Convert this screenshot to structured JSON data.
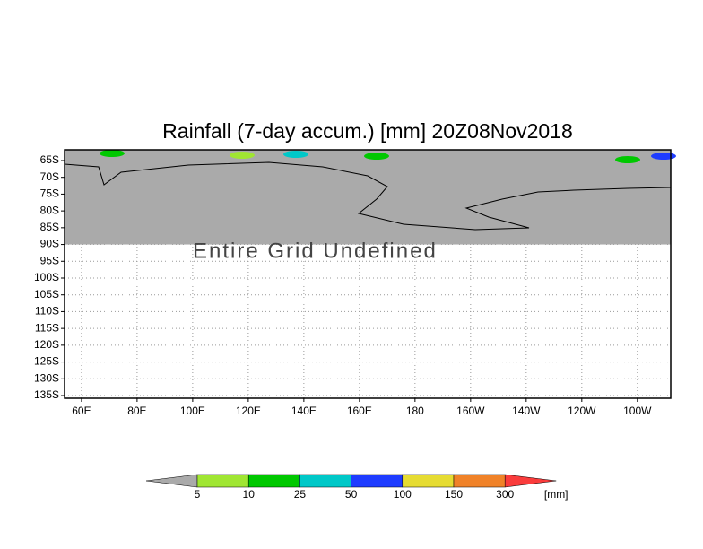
{
  "title": "Rainfall (7-day accum.) [mm] 20Z08Nov2018",
  "message": "Entire Grid Undefined",
  "map": {
    "lonlim": [
      53.9,
      272
    ],
    "latlim": [
      -61.8,
      -135.8
    ],
    "lat_ticks": [
      {
        "value": -65,
        "label": "65S"
      },
      {
        "value": -70,
        "label": "70S"
      },
      {
        "value": -75,
        "label": "75S"
      },
      {
        "value": -80,
        "label": "80S"
      },
      {
        "value": -85,
        "label": "85S"
      },
      {
        "value": -90,
        "label": "90S"
      },
      {
        "value": -95,
        "label": "95S"
      },
      {
        "value": -100,
        "label": "100S"
      },
      {
        "value": -105,
        "label": "105S"
      },
      {
        "value": -110,
        "label": "110S"
      },
      {
        "value": -115,
        "label": "115S"
      },
      {
        "value": -120,
        "label": "120S"
      },
      {
        "value": -125,
        "label": "125S"
      },
      {
        "value": -130,
        "label": "130S"
      },
      {
        "value": -135,
        "label": "135S"
      }
    ],
    "lon_ticks": [
      {
        "value": 60,
        "label": "60E"
      },
      {
        "value": 80,
        "label": "80E"
      },
      {
        "value": 100,
        "label": "100E"
      },
      {
        "value": 120,
        "label": "120E"
      },
      {
        "value": 140,
        "label": "140E"
      },
      {
        "value": 160,
        "label": "160E"
      },
      {
        "value": 180,
        "label": "180"
      },
      {
        "value": 200,
        "label": "160W"
      },
      {
        "value": 220,
        "label": "140W"
      },
      {
        "value": 240,
        "label": "120W"
      },
      {
        "value": 260,
        "label": "100W"
      }
    ],
    "mask_lat": [
      -61.8,
      -90
    ],
    "mask_color": "#aaaaaa"
  },
  "colorbar": {
    "levels": [
      5,
      10,
      25,
      50,
      100,
      150,
      300
    ],
    "colors": [
      "#aaaaaa",
      "#a0e632",
      "#00c800",
      "#00c8c8",
      "#1e3cff",
      "#e6dc32",
      "#f08228",
      "#fa3c3c"
    ],
    "unit": "[mm]"
  }
}
